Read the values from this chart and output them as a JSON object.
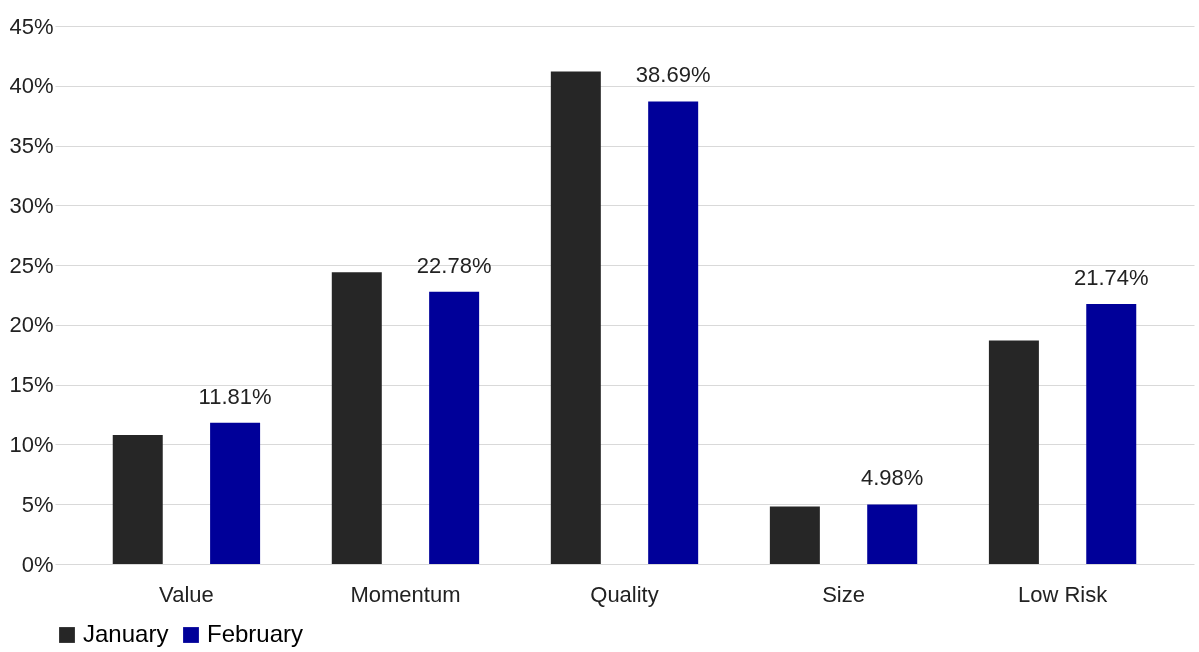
{
  "chart_data": {
    "type": "bar",
    "categories": [
      "Value",
      "Momentum",
      "Quality",
      "Size",
      "Low Risk"
    ],
    "series": [
      {
        "name": "January",
        "color": "#262626",
        "values": [
          10.8,
          24.4,
          41.2,
          4.8,
          18.7
        ]
      },
      {
        "name": "February",
        "color": "#000099",
        "values": [
          11.81,
          22.78,
          38.69,
          4.98,
          21.74
        ],
        "value_labels": [
          "11.81%",
          "22.78%",
          "38.69%",
          "4.98%",
          "21.74%"
        ]
      }
    ],
    "ylim": [
      0,
      45
    ],
    "yticks": [
      {
        "value": 0,
        "label": "0%"
      },
      {
        "value": 5,
        "label": "5%"
      },
      {
        "value": 10,
        "label": "10%"
      },
      {
        "value": 15,
        "label": "15%"
      },
      {
        "value": 20,
        "label": "20%"
      },
      {
        "value": 25,
        "label": "25%"
      },
      {
        "value": 30,
        "label": "30%"
      },
      {
        "value": 35,
        "label": "35%"
      },
      {
        "value": 40,
        "label": "40%"
      },
      {
        "value": 45,
        "label": "45%"
      }
    ],
    "grid": "y",
    "legend": "bottom"
  }
}
